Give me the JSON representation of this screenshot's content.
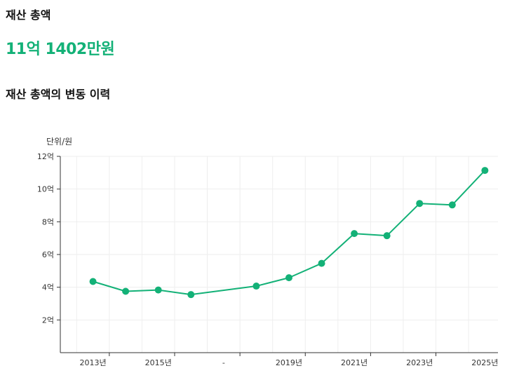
{
  "header": {
    "section_title": "재산 총액",
    "total_amount": "11억 1402만원",
    "chart_title": "재산 총액의 변동 이력"
  },
  "colors": {
    "accent": "#13b177",
    "axis": "#333333",
    "grid": "#eeeeee"
  },
  "chart_data": {
    "type": "line",
    "unit_label": "단위/원",
    "y_tick_labels": [
      "2억",
      "4억",
      "6억",
      "8억",
      "10억",
      "12억"
    ],
    "y_tick_values": [
      2,
      4,
      6,
      8,
      10,
      12
    ],
    "ylim": [
      0,
      12
    ],
    "x_tick_labels": [
      "2013년",
      "2015년",
      "-",
      "2019년",
      "2021년",
      "2023년",
      "2025년"
    ],
    "x_tick_positions": [
      2013,
      2015,
      2017,
      2019,
      2021,
      2023,
      2025
    ],
    "xlim": [
      2012,
      2025.4
    ],
    "grid": true,
    "series": [
      {
        "x": [
          2013,
          2014,
          2015,
          2016,
          2018,
          2019,
          2020,
          2021,
          2022,
          2023,
          2024,
          2025
        ],
        "values": [
          4.35,
          3.75,
          3.83,
          3.55,
          4.07,
          4.58,
          5.46,
          7.28,
          7.15,
          9.12,
          9.03,
          11.14
        ]
      }
    ]
  }
}
